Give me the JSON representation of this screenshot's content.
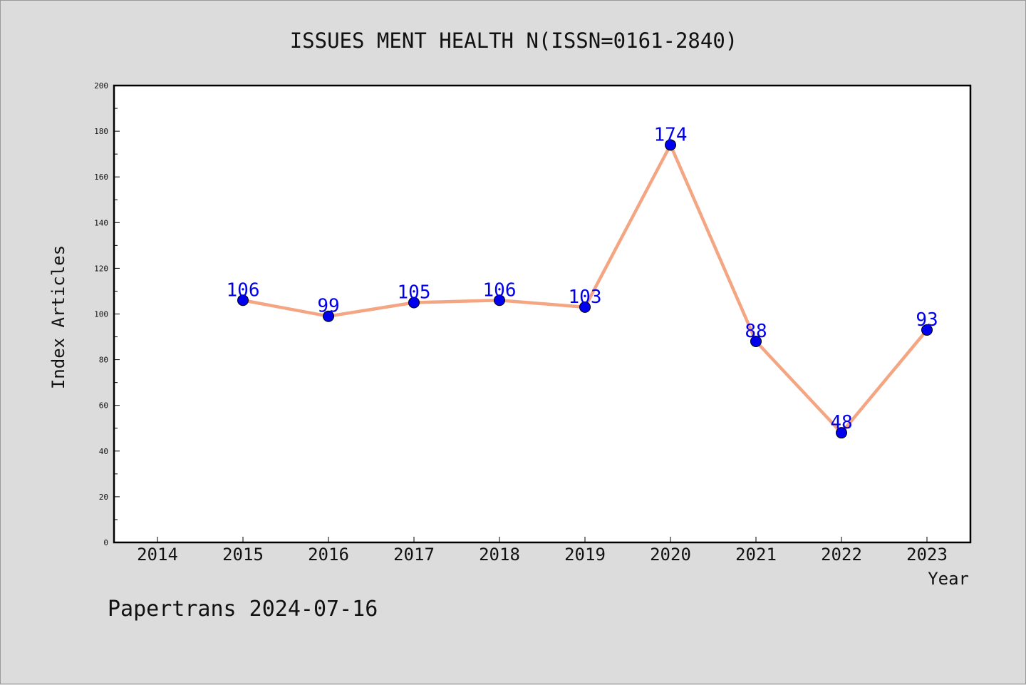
{
  "chart_data": {
    "type": "line",
    "title": "ISSUES MENT HEALTH N(ISSN=0161-2840)",
    "xlabel": "Year",
    "ylabel": "Index Articles",
    "x_ticks": [
      "2014",
      "2015",
      "2016",
      "2017",
      "2018",
      "2019",
      "2020",
      "2021",
      "2022",
      "2023"
    ],
    "y_ticks": [
      0,
      20,
      40,
      60,
      80,
      100,
      120,
      140,
      160,
      180,
      200
    ],
    "ylim": [
      0,
      200
    ],
    "grid": false,
    "series": [
      {
        "x": [
          "2015",
          "2016",
          "2017",
          "2018",
          "2019",
          "2020",
          "2021",
          "2022",
          "2023"
        ],
        "values": [
          106,
          99,
          105,
          106,
          103,
          174,
          88,
          48,
          93
        ],
        "line_color": "#f4a582",
        "marker_color": "#0000ee"
      }
    ]
  },
  "footer": "Papertrans 2024-07-16"
}
